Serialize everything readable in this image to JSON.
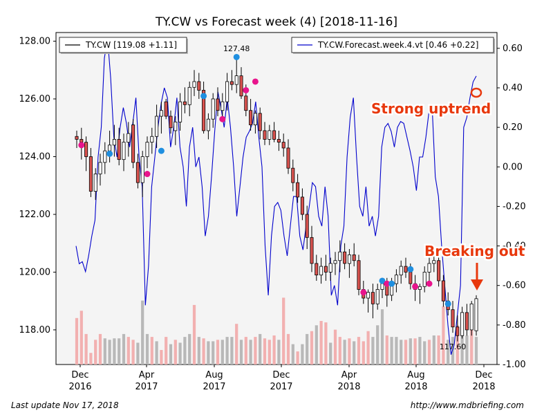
{
  "chart_data": {
    "type": "candlestick",
    "title": "TY.CW vs Forecast week (4)  [2018-11-16]",
    "x_ticks": [
      {
        "label": [
          "Dec",
          "2016"
        ],
        "date": "2016-12"
      },
      {
        "label": [
          "Apr",
          "2017"
        ],
        "date": "2017-04"
      },
      {
        "label": [
          "Aug",
          "2017"
        ],
        "date": "2017-08"
      },
      {
        "label": [
          "Dec",
          "2017"
        ],
        "date": "2017-12"
      },
      {
        "label": [
          "Apr",
          "2018"
        ],
        "date": "2018-04"
      },
      {
        "label": [
          "Aug",
          "2018"
        ],
        "date": "2018-08"
      },
      {
        "label": [
          "Dec",
          "2018"
        ],
        "date": "2018-12"
      }
    ],
    "y_left": {
      "ticks": [
        "118.00",
        "120.00",
        "122.00",
        "124.00",
        "126.00",
        "128.00"
      ],
      "range": [
        116.8,
        128.3
      ]
    },
    "y_right": {
      "ticks": [
        "-1.00",
        "-0.80",
        "-0.60",
        "-0.40",
        "-0.20",
        "0.00",
        "0.20",
        "0.40",
        "0.60"
      ],
      "range": [
        -1.0,
        0.68
      ]
    },
    "legend": [
      {
        "label": "TY.CW [119.08 +1.11]",
        "color": "#000000",
        "position": "top-left"
      },
      {
        "label": "TY.CW.Forecast.week.4.vt [0.46 +0.22]",
        "color": "#0000cc",
        "position": "top-right"
      }
    ],
    "annotations": {
      "high_label": "127.48",
      "low_label": "117.60",
      "strong_uptrend": "Strong uptrend",
      "breaking_out": "Breaking out"
    },
    "candles": [
      [
        124.7,
        124.9,
        124.3,
        124.6
      ],
      [
        124.6,
        125.0,
        123.9,
        124.5
      ],
      [
        124.5,
        124.7,
        123.5,
        124.0
      ],
      [
        124.0,
        124.3,
        122.6,
        122.8
      ],
      [
        122.8,
        123.6,
        122.5,
        123.4
      ],
      [
        123.4,
        124.1,
        123.0,
        123.8
      ],
      [
        123.8,
        124.5,
        123.4,
        124.2
      ],
      [
        124.2,
        124.9,
        123.8,
        124.4
      ],
      [
        124.4,
        125.1,
        124.0,
        124.6
      ],
      [
        124.6,
        125.0,
        123.7,
        123.9
      ],
      [
        123.9,
        124.8,
        123.5,
        124.5
      ],
      [
        124.5,
        125.2,
        124.0,
        124.8
      ],
      [
        125.1,
        125.3,
        123.6,
        123.8
      ],
      [
        123.8,
        124.1,
        122.9,
        123.1
      ],
      [
        123.1,
        124.2,
        122.6,
        124.0
      ],
      [
        124.0,
        124.7,
        123.6,
        124.5
      ],
      [
        124.5,
        125.0,
        124.1,
        124.7
      ],
      [
        124.7,
        125.8,
        124.3,
        125.4
      ],
      [
        125.4,
        125.9,
        124.8,
        125.6
      ],
      [
        125.9,
        126.0,
        125.3,
        125.4
      ],
      [
        125.4,
        125.6,
        124.8,
        125.0
      ],
      [
        124.9,
        125.4,
        124.4,
        125.2
      ],
      [
        125.2,
        126.2,
        124.9,
        125.9
      ],
      [
        125.9,
        126.4,
        125.5,
        125.8
      ],
      [
        125.8,
        126.6,
        125.4,
        126.4
      ],
      [
        126.4,
        127.0,
        126.1,
        126.6
      ],
      [
        126.6,
        126.9,
        126.0,
        126.3
      ],
      [
        126.3,
        126.6,
        124.8,
        124.9
      ],
      [
        124.9,
        125.5,
        124.6,
        125.3
      ],
      [
        125.3,
        126.2,
        125.0,
        126.0
      ],
      [
        126.0,
        126.4,
        125.4,
        125.6
      ],
      [
        125.6,
        126.2,
        125.2,
        125.9
      ],
      [
        125.9,
        126.9,
        125.6,
        126.6
      ],
      [
        126.6,
        127.0,
        126.3,
        126.5
      ],
      [
        126.5,
        127.48,
        126.2,
        126.8
      ],
      [
        126.8,
        127.1,
        126.0,
        126.1
      ],
      [
        126.1,
        126.5,
        125.4,
        125.6
      ],
      [
        125.6,
        126.0,
        124.9,
        125.1
      ],
      [
        125.1,
        125.6,
        124.8,
        125.5
      ],
      [
        125.5,
        125.7,
        124.6,
        124.9
      ],
      [
        124.9,
        125.2,
        124.4,
        124.6
      ],
      [
        124.6,
        125.1,
        124.4,
        124.9
      ],
      [
        124.9,
        125.2,
        124.5,
        124.6
      ],
      [
        124.6,
        124.9,
        124.2,
        124.5
      ],
      [
        124.5,
        124.8,
        124.0,
        124.3
      ],
      [
        124.3,
        124.6,
        123.4,
        123.6
      ],
      [
        123.6,
        123.9,
        122.8,
        123.1
      ],
      [
        123.1,
        123.4,
        122.4,
        122.6
      ],
      [
        122.6,
        122.9,
        121.8,
        122.0
      ],
      [
        122.0,
        122.3,
        120.8,
        121.2
      ],
      [
        121.2,
        121.6,
        120.0,
        120.3
      ],
      [
        120.3,
        120.6,
        119.7,
        119.9
      ],
      [
        119.9,
        120.5,
        119.6,
        120.2
      ],
      [
        120.2,
        120.6,
        119.7,
        120.0
      ],
      [
        120.0,
        120.5,
        119.7,
        120.3
      ],
      [
        120.3,
        120.7,
        119.9,
        120.4
      ],
      [
        120.4,
        121.1,
        120.0,
        120.7
      ],
      [
        120.7,
        121.0,
        120.1,
        120.3
      ],
      [
        120.3,
        120.8,
        119.8,
        120.6
      ],
      [
        120.6,
        121.0,
        120.2,
        120.4
      ],
      [
        120.4,
        120.6,
        119.2,
        119.4
      ],
      [
        119.4,
        119.7,
        118.9,
        119.1
      ],
      [
        119.1,
        119.4,
        118.6,
        119.3
      ],
      [
        119.3,
        119.6,
        118.4,
        118.9
      ],
      [
        118.9,
        119.6,
        118.7,
        119.4
      ],
      [
        119.4,
        119.8,
        119.1,
        119.6
      ],
      [
        119.6,
        119.8,
        118.8,
        119.2
      ],
      [
        119.2,
        119.8,
        119.0,
        119.6
      ],
      [
        119.6,
        120.1,
        119.3,
        119.9
      ],
      [
        119.9,
        120.4,
        119.6,
        120.2
      ],
      [
        120.2,
        120.5,
        119.8,
        120.0
      ],
      [
        120.0,
        120.3,
        119.4,
        119.6
      ],
      [
        119.6,
        119.9,
        119.0,
        119.4
      ],
      [
        119.4,
        119.6,
        118.9,
        119.5
      ],
      [
        119.5,
        120.2,
        119.3,
        120.0
      ],
      [
        120.0,
        120.5,
        119.7,
        120.3
      ],
      [
        120.3,
        120.6,
        120.0,
        120.4
      ],
      [
        120.4,
        120.6,
        119.5,
        119.7
      ],
      [
        119.7,
        119.9,
        118.8,
        119.0
      ],
      [
        119.0,
        119.3,
        118.5,
        118.7
      ],
      [
        118.7,
        119.0,
        117.9,
        118.1
      ],
      [
        118.1,
        118.5,
        117.6,
        117.8
      ],
      [
        117.8,
        118.8,
        117.7,
        118.6
      ],
      [
        118.6,
        118.9,
        117.8,
        118.0
      ],
      [
        118.0,
        119.0,
        117.8,
        118.9
      ],
      [
        117.97,
        119.2,
        117.8,
        119.08
      ]
    ],
    "volume": [
      [
        0.32,
        "r"
      ],
      [
        0.37,
        "r"
      ],
      [
        0.21,
        "r"
      ],
      [
        0.08,
        "r"
      ],
      [
        0.17,
        "r"
      ],
      [
        0.21,
        "r"
      ],
      [
        0.18,
        "g"
      ],
      [
        0.17,
        "g"
      ],
      [
        0.18,
        "g"
      ],
      [
        0.18,
        "g"
      ],
      [
        0.21,
        "g"
      ],
      [
        0.19,
        "r"
      ],
      [
        0.17,
        "r"
      ],
      [
        0.15,
        "g"
      ],
      [
        0.44,
        "g"
      ],
      [
        0.21,
        "g"
      ],
      [
        0.19,
        "r"
      ],
      [
        0.16,
        "g"
      ],
      [
        0.1,
        "r"
      ],
      [
        0.19,
        "r"
      ],
      [
        0.14,
        "g"
      ],
      [
        0.17,
        "r"
      ],
      [
        0.15,
        "g"
      ],
      [
        0.19,
        "g"
      ],
      [
        0.21,
        "g"
      ],
      [
        0.41,
        "r"
      ],
      [
        0.19,
        "g"
      ],
      [
        0.18,
        "r"
      ],
      [
        0.16,
        "g"
      ],
      [
        0.16,
        "g"
      ],
      [
        0.17,
        "r"
      ],
      [
        0.17,
        "g"
      ],
      [
        0.19,
        "g"
      ],
      [
        0.19,
        "g"
      ],
      [
        0.28,
        "r"
      ],
      [
        0.17,
        "g"
      ],
      [
        0.19,
        "r"
      ],
      [
        0.17,
        "g"
      ],
      [
        0.19,
        "r"
      ],
      [
        0.21,
        "g"
      ],
      [
        0.18,
        "r"
      ],
      [
        0.17,
        "r"
      ],
      [
        0.2,
        "r"
      ],
      [
        0.17,
        "g"
      ],
      [
        0.46,
        "r"
      ],
      [
        0.21,
        "r"
      ],
      [
        0.14,
        "g"
      ],
      [
        0.09,
        "r"
      ],
      [
        0.14,
        "g"
      ],
      [
        0.21,
        "g"
      ],
      [
        0.23,
        "r"
      ],
      [
        0.27,
        "g"
      ],
      [
        0.3,
        "r"
      ],
      [
        0.29,
        "r"
      ],
      [
        0.15,
        "g"
      ],
      [
        0.24,
        "r"
      ],
      [
        0.19,
        "r"
      ],
      [
        0.17,
        "g"
      ],
      [
        0.18,
        "r"
      ],
      [
        0.16,
        "g"
      ],
      [
        0.19,
        "r"
      ],
      [
        0.16,
        "r"
      ],
      [
        0.23,
        "r"
      ],
      [
        0.19,
        "g"
      ],
      [
        0.27,
        "g"
      ],
      [
        0.38,
        "g"
      ],
      [
        0.2,
        "r"
      ],
      [
        0.19,
        "g"
      ],
      [
        0.19,
        "g"
      ],
      [
        0.17,
        "g"
      ],
      [
        0.17,
        "r"
      ],
      [
        0.18,
        "g"
      ],
      [
        0.18,
        "r"
      ],
      [
        0.19,
        "g"
      ],
      [
        0.16,
        "g"
      ],
      [
        0.17,
        "r"
      ],
      [
        0.2,
        "g"
      ],
      [
        0.2,
        "r"
      ],
      [
        0.4,
        "r"
      ],
      [
        0.17,
        "g"
      ],
      [
        0.19,
        "g"
      ],
      [
        0.27,
        "r"
      ],
      [
        0.21,
        "g"
      ],
      [
        0.2,
        "g"
      ],
      [
        0.24,
        "r"
      ],
      [
        0.19,
        "g"
      ]
    ],
    "forecast": [
      -0.4,
      -0.49,
      -0.48,
      -0.53,
      -0.45,
      -0.35,
      -0.27,
      0.05,
      0.2,
      0.55,
      0.65,
      0.45,
      0.15,
      0.05,
      0.2,
      0.3,
      0.22,
      0.1,
      0.22,
      0.35,
      0.05,
      -0.1,
      -0.7,
      -0.5,
      -0.1,
      0.05,
      0.2,
      0.32,
      0.4,
      0.35,
      0.1,
      0.2,
      0.35,
      0.1,
      0.0,
      -0.2,
      0.1,
      0.2,
      0.0,
      0.05,
      -0.1,
      -0.35,
      -0.25,
      -0.05,
      0.18,
      0.38,
      0.3,
      0.2,
      0.35,
      0.2,
      0.0,
      -0.25,
      -0.1,
      0.05,
      0.15,
      0.18,
      0.22,
      0.33,
      0.15,
      0.0,
      -0.4,
      -0.65,
      -0.35,
      -0.2,
      -0.18,
      -0.22,
      -0.35,
      -0.45,
      -0.3,
      -0.15,
      -0.15,
      -0.35,
      -0.42,
      -0.3,
      -0.2,
      -0.08,
      -0.1,
      -0.25,
      -0.3,
      -0.1,
      -0.25,
      -0.65,
      -0.6,
      -0.7,
      -0.4,
      -0.3,
      0.05,
      0.25,
      0.35,
      0.05,
      -0.2,
      -0.25,
      -0.1,
      -0.3,
      -0.25,
      -0.35,
      -0.25,
      0.1,
      0.2,
      0.22,
      0.18,
      0.1,
      0.2,
      0.23,
      0.22,
      0.15,
      0.08,
      0.0,
      -0.12,
      0.05,
      0.05,
      0.15,
      0.28,
      0.3,
      -0.05,
      -0.15,
      -0.4,
      -0.6,
      -0.8,
      -0.95,
      -0.9,
      -0.75,
      -0.6,
      0.2,
      0.25,
      0.35,
      0.43,
      0.46
    ],
    "markers": [
      {
        "i": 1,
        "v": 124.4,
        "c": "#e8148c"
      },
      {
        "i": 7,
        "v": 124.1,
        "c": "#1f8fe0"
      },
      {
        "i": 15,
        "v": 123.4,
        "c": "#e8148c"
      },
      {
        "i": 18,
        "v": 124.2,
        "c": "#1f8fe0"
      },
      {
        "i": 27,
        "v": 126.1,
        "c": "#1f8fe0"
      },
      {
        "i": 31,
        "v": 125.3,
        "c": "#e8148c"
      },
      {
        "i": 34,
        "v": 127.45,
        "c": "#1f8fe0"
      },
      {
        "i": 36,
        "v": 126.3,
        "c": "#e8148c"
      },
      {
        "i": 38,
        "v": 126.6,
        "c": "#e8148c"
      },
      {
        "i": 61,
        "v": 119.3,
        "c": "#e8148c"
      },
      {
        "i": 65,
        "v": 119.7,
        "c": "#1f8fe0"
      },
      {
        "i": 66,
        "v": 119.6,
        "c": "#e8148c"
      },
      {
        "i": 67,
        "v": 119.6,
        "c": "#1f8fe0"
      },
      {
        "i": 71,
        "v": 120.1,
        "c": "#1f8fe0"
      },
      {
        "i": 72,
        "v": 119.5,
        "c": "#e8148c"
      },
      {
        "i": 75,
        "v": 119.6,
        "c": "#e8148c"
      },
      {
        "i": 79,
        "v": 118.9,
        "c": "#1f8fe0"
      }
    ]
  },
  "footer": {
    "left": "Last update Nov 17, 2018",
    "right": "http://www.mdbriefing.com"
  }
}
